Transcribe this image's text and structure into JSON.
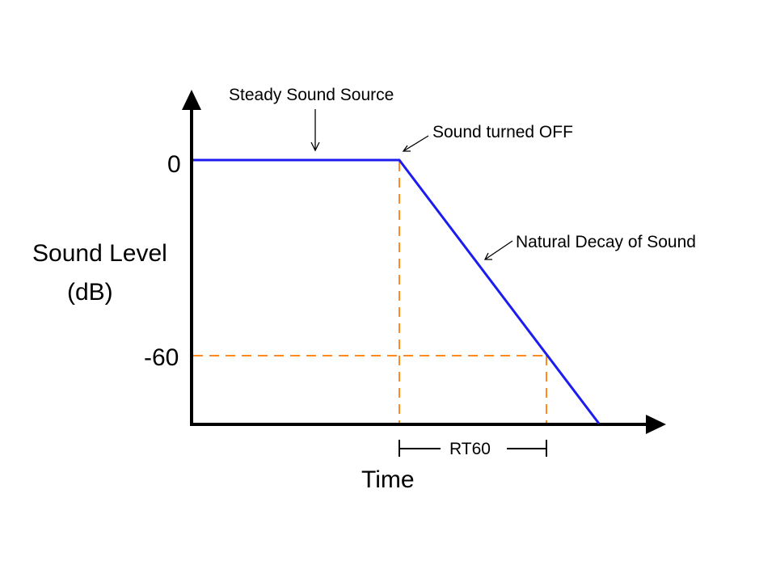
{
  "labels": {
    "steady_source": "Steady Sound Source",
    "sound_off": "Sound turned OFF",
    "natural_decay": "Natural Decay of Sound",
    "y_tick_0": "0",
    "y_tick_minus60": "-60",
    "y_axis_line1": "Sound Level",
    "y_axis_line2": "(dB)",
    "x_axis": "Time",
    "rt60": "RT60"
  },
  "colors": {
    "curve": "#1c1cf0",
    "guides": "#ff8c1a",
    "axes": "#000000",
    "background": "#ffffff"
  }
}
